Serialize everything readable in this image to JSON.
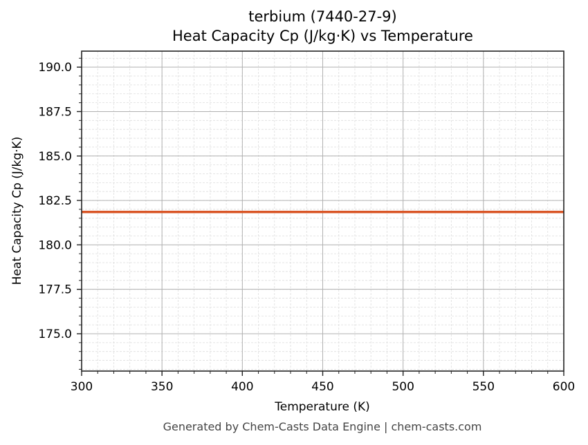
{
  "chart_data": {
    "type": "line",
    "title": "terbium (7440-27-9)",
    "subtitle": "Heat Capacity Cp (J/kg·K) vs Temperature",
    "xlabel": "Temperature (K)",
    "ylabel": "Heat Capacity Cp (J/kg·K)",
    "xlim": [
      300,
      600
    ],
    "ylim": [
      172.9,
      190.9
    ],
    "xticks": [
      300,
      350,
      400,
      450,
      500,
      550,
      600
    ],
    "xtick_labels": [
      "300",
      "350",
      "400",
      "450",
      "500",
      "550",
      "600"
    ],
    "yticks": [
      175.0,
      177.5,
      180.0,
      182.5,
      185.0,
      187.5,
      190.0
    ],
    "ytick_labels": [
      "175.0",
      "177.5",
      "180.0",
      "182.5",
      "185.0",
      "187.5",
      "190.0"
    ],
    "grid": true,
    "minor_grid": true,
    "series": [
      {
        "name": "Cp",
        "color": "#d95525",
        "x": [
          300,
          600
        ],
        "y": [
          181.85,
          181.85
        ]
      }
    ]
  },
  "footer": "Generated by Chem-Casts Data Engine | chem-casts.com"
}
